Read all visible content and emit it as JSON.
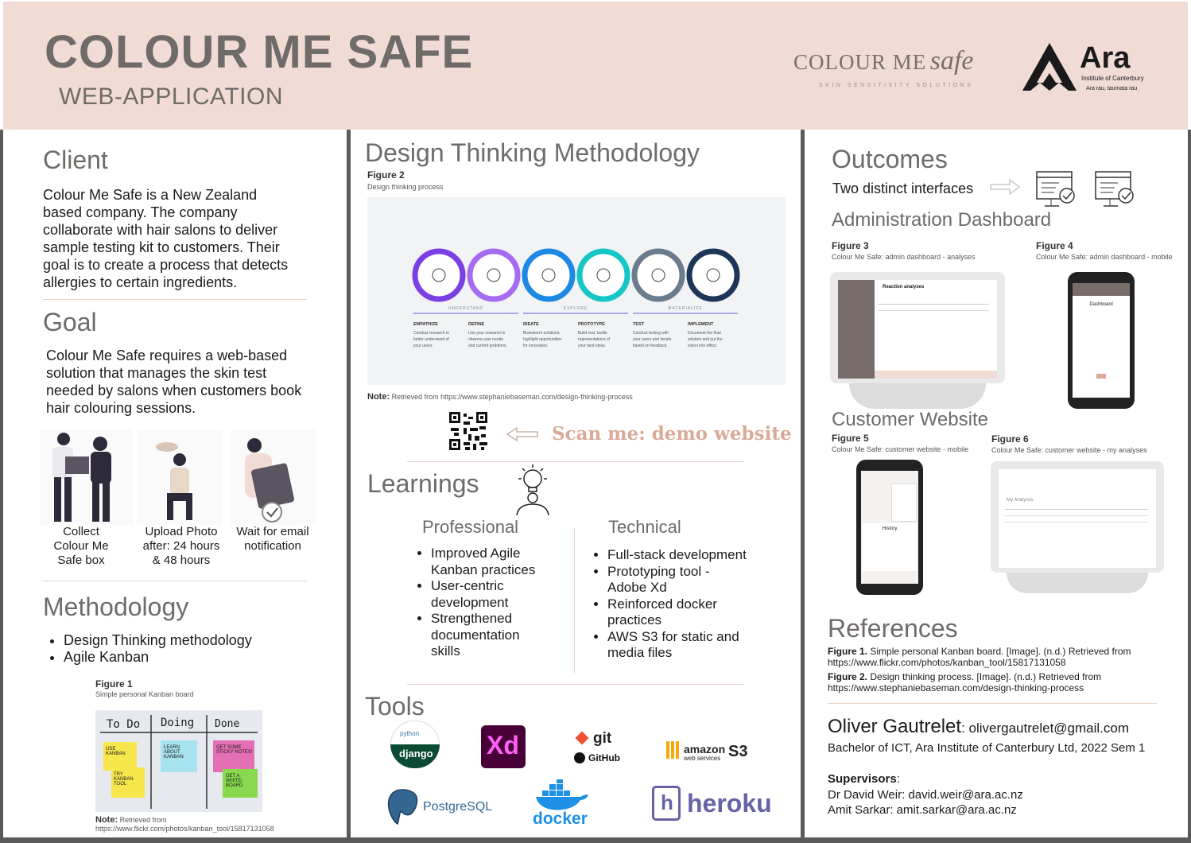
{
  "header": {
    "title": "COLOUR ME SAFE",
    "subtitle": "WEB-APPLICATION",
    "brand_logo": {
      "word1": "COLOUR ME",
      "word2": "safe",
      "tagline": "SKIN SENSITIVITY SOLUTIONS"
    },
    "ara_logo": {
      "name": "Ara",
      "institute": "Institute of Canterbury",
      "motto": "Ara rau, taumata rau"
    }
  },
  "client": {
    "heading": "Client",
    "lines": [
      "Colour Me Safe is a New Zealand",
      "based company. The company",
      "collaborate with hair salons to deliver",
      "sample testing kit to customers. Their",
      "goal is to create a process that detects",
      "allergies to certain ingredients."
    ]
  },
  "goal": {
    "heading": "Goal",
    "lines": [
      "Colour Me Safe requires a web-based",
      "solution that manages the skin test",
      "needed by salons when customers book",
      "hair colouring sessions."
    ],
    "steps": [
      {
        "lines": [
          "Collect",
          "Colour Me",
          "Safe box"
        ]
      },
      {
        "lines": [
          "Upload Photo",
          "after: 24 hours",
          "& 48 hours"
        ]
      },
      {
        "lines": [
          "Wait for email",
          "notification"
        ]
      }
    ]
  },
  "methodology": {
    "heading": "Methodology",
    "items": [
      "Design Thinking methodology",
      "Agile Kanban"
    ],
    "figure_label": "Figure 1",
    "figure_caption": "Simple personal Kanban board",
    "kanban": {
      "columns": [
        "To Do",
        "Doing",
        "Done"
      ],
      "notes": [
        "USE KANBAN",
        "TRY KANBAN TOOL",
        "LEARN ABOUT KANBAN",
        "GET SOME STICKY NOTES!",
        "GET A WHITE-BOARD"
      ]
    },
    "note_label": "Note:",
    "note_text": "Retrieved from",
    "note_url": "https://www.flickr.com/photos/kanban_tool/15817131058"
  },
  "design_thinking": {
    "heading": "Design Thinking Methodology",
    "figure_label": "Figure 2",
    "figure_caption": "Design thinking process",
    "phases": [
      "UNDERSTAND",
      "EXPLORE",
      "MATERIALIZE"
    ],
    "stages": [
      {
        "name": "EMPATHIZE",
        "desc": [
          "Conduct research to",
          "better understand of",
          "your users."
        ]
      },
      {
        "name": "DEFINE",
        "desc": [
          "Use your research to",
          "observe user needs",
          "and current problems."
        ]
      },
      {
        "name": "IDEATE",
        "desc": [
          "Brainstorm solutions;",
          "highlight opportunities",
          "for innovation."
        ]
      },
      {
        "name": "PROTOTYPE",
        "desc": [
          "Build real, tactile",
          "representations of",
          "your best ideas."
        ]
      },
      {
        "name": "TEST",
        "desc": [
          "Conduct testing with",
          "your users and iterate",
          "based on feedback."
        ]
      },
      {
        "name": "IMPLEMENT",
        "desc": [
          "Document the final",
          "solution and put the",
          "vision into effect."
        ]
      }
    ],
    "stage_colors": [
      "#7b3fe4",
      "#a66cf0",
      "#1e88e5",
      "#16c6c6",
      "#6b7c8c",
      "#1d3557"
    ],
    "note_label": "Note:",
    "note_text": "Retrieved from https://www.stephaniebaseman.com/design-thinking-process",
    "scan_text": "Scan me: demo website"
  },
  "learnings": {
    "heading": "Learnings",
    "professional": {
      "heading": "Professional",
      "items": [
        [
          "Improved Agile",
          "Kanban practices"
        ],
        [
          "User-centric",
          "development"
        ],
        [
          "Strengthened",
          "documentation",
          "skills"
        ]
      ]
    },
    "technical": {
      "heading": "Technical",
      "items": [
        [
          "Full-stack development"
        ],
        [
          "Prototyping tool -",
          "Adobe Xd"
        ],
        [
          "Reinforced docker",
          "practices"
        ],
        [
          "AWS S3 for static and",
          "media files"
        ]
      ]
    }
  },
  "tools": {
    "heading": "Tools",
    "logos": [
      "python",
      "django",
      "Xd",
      "git",
      "GitHub",
      "amazon",
      "web services",
      "S3",
      "PostgreSQL",
      "docker",
      "heroku"
    ]
  },
  "outcomes": {
    "heading": "Outcomes",
    "interfaces_text": "Two distinct interfaces",
    "admin_heading": "Administration Dashboard",
    "fig3_label": "Figure 3",
    "fig3_caption": "Colour Me Safe: admin dashboard - analyses",
    "fig4_label": "Figure 4",
    "fig4_caption": "Colour Me Safe: admin dashboard - mobile",
    "customer_heading": "Customer Website",
    "fig5_label": "Figure 5",
    "fig5_caption": "Colour Me Safe: customer website - mobile",
    "fig6_label": "Figure 6",
    "fig6_caption": "Colour Me Safe: customer website - my analyses",
    "screen_texts": {
      "reaction": "Reaction analyses",
      "dashboard": "Dashboard",
      "history": "History",
      "my_analyses": "My Analyses"
    }
  },
  "references": {
    "heading": "References",
    "items": [
      {
        "label": "Figure 1.",
        "text": "Simple personal Kanban board. [Image]. (n.d.) Retrieved from",
        "url": "https://www.flickr.com/photos/kanban_tool/15817131058"
      },
      {
        "label": "Figure 2.",
        "text": "Design thinking process. [Image]. (n.d.) Retrieved from",
        "url": "https://www.stephaniebaseman.com/design-thinking-process"
      }
    ]
  },
  "author": {
    "name": "Oliver Gautrelet",
    "email": ": olivergautrelet@gmail.com",
    "degree": "Bachelor of ICT, Ara Institute of Canterbury Ltd, 2022 Sem 1",
    "supervisors_label": "Supervisors",
    "supervisors_colon": ":",
    "supervisors": [
      "Dr David Weir: david.weir@ara.ac.nz",
      "Amit Sarkar: amit.sarkar@ara.ac.nz"
    ]
  }
}
